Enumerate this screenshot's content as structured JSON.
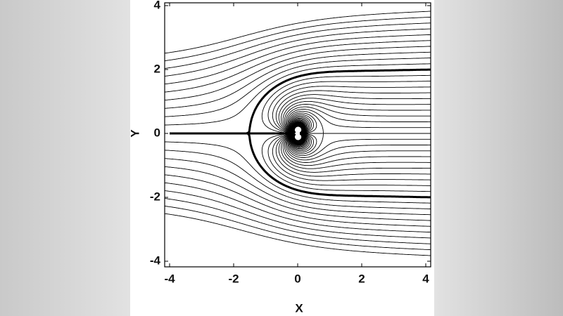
{
  "chart_data": {
    "type": "streamline",
    "xlabel": "X",
    "ylabel": "Y",
    "xlim": [
      -4,
      4
    ],
    "ylim": [
      -4,
      4
    ],
    "xticks": [
      -4,
      -2,
      0,
      2,
      4
    ],
    "yticks": [
      -4,
      -2,
      0,
      2,
      4
    ]
  }
}
